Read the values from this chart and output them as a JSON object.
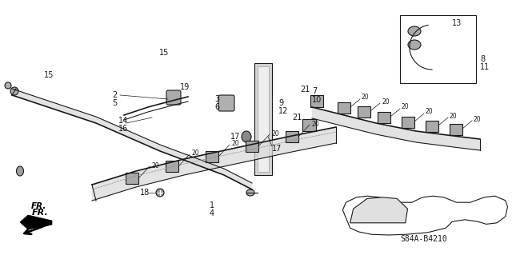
{
  "bg_color": "#ffffff",
  "fig_width": 6.4,
  "fig_height": 3.19,
  "labels": {
    "fr_arrow": "FR.",
    "diagram_code": "S84A-B4210"
  }
}
